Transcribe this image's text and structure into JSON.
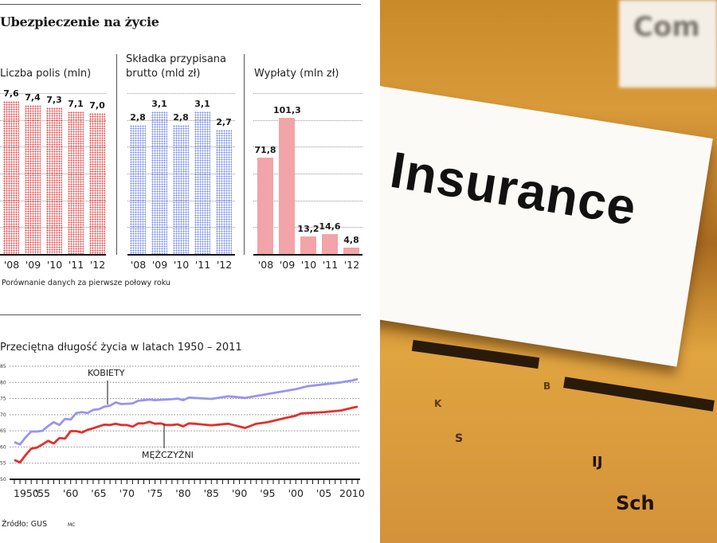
{
  "infographic": {
    "title": "Ubezpieczenie na życie",
    "footnote": "Porównanie danych za pierwsze połowy roku",
    "source": "Źródło: GUS",
    "author": "MC"
  },
  "chart_data": [
    {
      "type": "bar",
      "title": "Liczba polis (mln)",
      "categories": [
        "'08",
        "'09",
        "'10",
        "'11",
        "'12"
      ],
      "values": [
        7.6,
        7.4,
        7.3,
        7.1,
        7.0
      ],
      "labels": [
        "7,6",
        "7,4",
        "7,3",
        "7,1",
        "7,0"
      ],
      "ylim": [
        0,
        8
      ],
      "grid": true,
      "color": "#e8403f"
    },
    {
      "type": "bar",
      "title": "Składka przypisana brutto (mld zł)",
      "title_lines": [
        "Składka przypisana",
        "brutto (mld zł)"
      ],
      "categories": [
        "'08",
        "'09",
        "'10",
        "'11",
        "'12"
      ],
      "values": [
        2.8,
        3.1,
        2.8,
        3.1,
        2.7
      ],
      "labels": [
        "2,8",
        "3,1",
        "2,8",
        "3,1",
        "2,7"
      ],
      "ylim": [
        0,
        3.5
      ],
      "grid": true,
      "color": "#6f86e8"
    },
    {
      "type": "bar",
      "title": "Wypłaty (mln zł)",
      "categories": [
        "'08",
        "'09",
        "'10",
        "'11",
        "'12"
      ],
      "values": [
        71.8,
        101.3,
        13.2,
        14.6,
        4.8
      ],
      "labels": [
        "71,8",
        "101,3",
        "13,2",
        "14,6",
        "4,8"
      ],
      "ylim": [
        0,
        120
      ],
      "grid": true,
      "color": "#f2a4a8"
    },
    {
      "type": "line",
      "title": "Przeciętna długość życia w latach 1950 – 2011",
      "xlim": [
        1950,
        2011
      ],
      "ylim": [
        50,
        85
      ],
      "yticks": [
        50,
        55,
        60,
        65,
        70,
        75,
        80,
        85
      ],
      "xtick_values": [
        1950,
        1955,
        1960,
        1965,
        1970,
        1975,
        1980,
        1985,
        1990,
        1995,
        2000,
        2005,
        2010
      ],
      "xtick_labels": [
        "1950",
        "'55",
        "'60",
        "'65",
        "'70",
        "'75",
        "'80",
        "'85",
        "'90",
        "'95",
        "'00",
        "'05",
        "2010"
      ],
      "grid": true,
      "series": [
        {
          "name": "KOBIETY",
          "color": "#9a94ef",
          "x": [
            1950,
            1951,
            1952,
            1953,
            1954,
            1955,
            1956,
            1957,
            1958,
            1959,
            1960,
            1961,
            1962,
            1963,
            1964,
            1965,
            1966,
            1967,
            1968,
            1969,
            1970,
            1971,
            1972,
            1974,
            1975,
            1978,
            1979,
            1980,
            1981,
            1985,
            1988,
            1991,
            1995,
            2000,
            2002,
            2005,
            2008,
            2010,
            2011
          ],
          "y": [
            61.5,
            60.8,
            63.0,
            64.8,
            64.8,
            65.0,
            66.5,
            67.7,
            66.8,
            68.7,
            68.5,
            70.5,
            70.8,
            70.5,
            71.5,
            71.7,
            72.5,
            72.8,
            73.8,
            73.3,
            73.4,
            73.5,
            74.3,
            74.7,
            74.5,
            74.8,
            75.0,
            74.5,
            75.3,
            74.9,
            75.7,
            75.2,
            76.4,
            77.9,
            78.8,
            79.4,
            80.0,
            80.6,
            81.0
          ]
        },
        {
          "name": "MĘŻCZYŹNI",
          "color": "#e3302c",
          "x": [
            1950,
            1951,
            1952,
            1953,
            1954,
            1955,
            1956,
            1957,
            1958,
            1959,
            1960,
            1961,
            1962,
            1963,
            1964,
            1965,
            1966,
            1967,
            1968,
            1969,
            1970,
            1971,
            1972,
            1973,
            1974,
            1975,
            1976,
            1977,
            1978,
            1979,
            1980,
            1981,
            1982,
            1985,
            1988,
            1991,
            1993,
            1995,
            1998,
            2000,
            2001,
            2005,
            2008,
            2010,
            2011
          ],
          "y": [
            56.0,
            55.2,
            57.5,
            59.5,
            59.8,
            60.8,
            61.9,
            61.1,
            62.8,
            62.6,
            64.9,
            64.9,
            64.5,
            65.3,
            65.8,
            66.4,
            66.9,
            66.8,
            67.2,
            66.8,
            66.8,
            66.3,
            67.3,
            67.3,
            67.8,
            67.2,
            67.3,
            66.8,
            66.8,
            67.0,
            66.4,
            67.3,
            67.2,
            66.7,
            67.2,
            65.9,
            67.2,
            67.7,
            68.9,
            69.7,
            70.4,
            70.8,
            71.3,
            72.1,
            72.5
          ]
        }
      ]
    }
  ],
  "photo": {
    "tab_label": "Insurance",
    "back_tab_label": "Com",
    "letters": [
      "B",
      "K",
      "S",
      "IJ",
      "Sch"
    ]
  }
}
